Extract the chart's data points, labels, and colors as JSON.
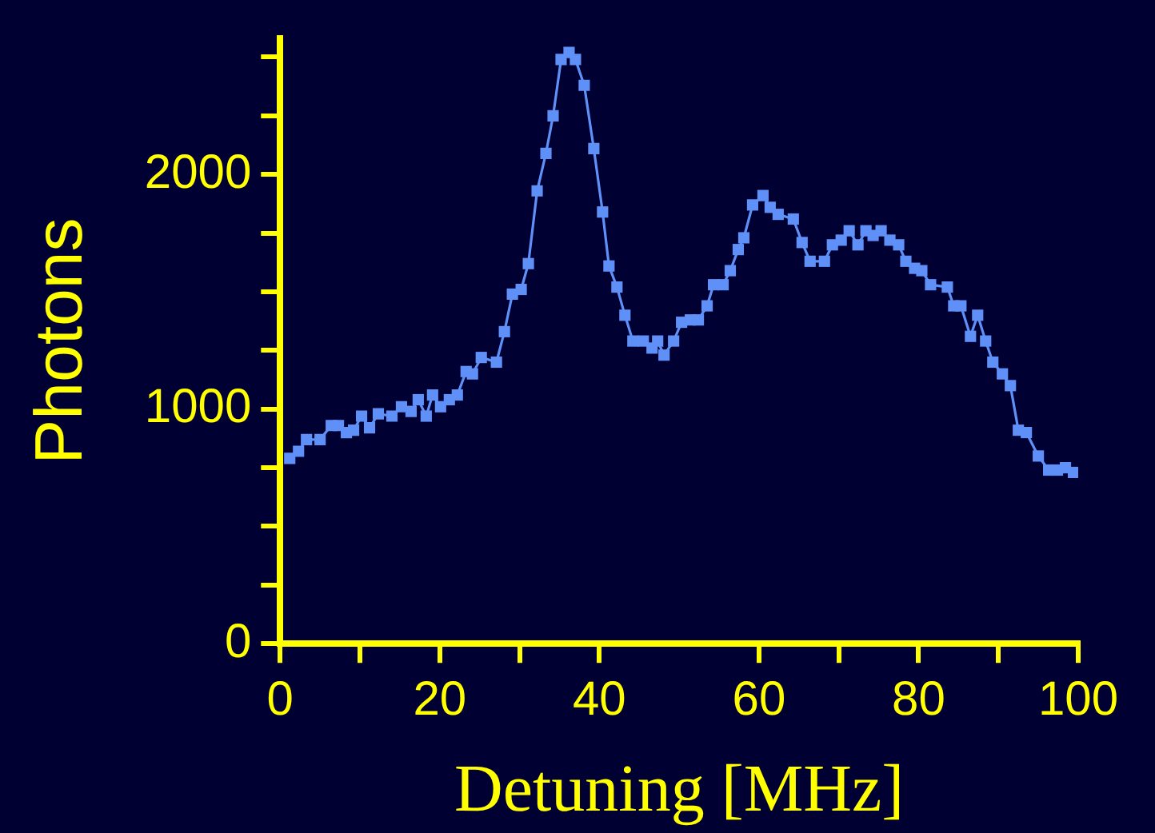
{
  "chart_data": {
    "type": "line",
    "xlabel": "Detuning [MHz]",
    "ylabel": "Photons",
    "x": [
      1.2,
      2.3,
      3.3,
      5,
      6.4,
      7.3,
      8.3,
      9.2,
      10.2,
      11.2,
      12.3,
      14,
      15.2,
      16.4,
      17.3,
      18.3,
      19.1,
      20.1,
      21.2,
      22.2,
      23.3,
      24.1,
      25.2,
      27.1,
      28.1,
      29.1,
      30.2,
      31.1,
      32.2,
      33.3,
      34.2,
      35.2,
      36.2,
      37,
      38.1,
      39.3,
      40.4,
      41.2,
      42.2,
      43.2,
      44.2,
      45.5,
      46.6,
      47.3,
      48.1,
      49.3,
      50.3,
      51.4,
      52.4,
      53.5,
      54.3,
      55.5,
      56.4,
      57.4,
      58.1,
      59.2,
      60.5,
      61.4,
      62.4,
      64.3,
      65.4,
      66.4,
      68.2,
      69.2,
      70.3,
      71.3,
      72.4,
      73.4,
      74.3,
      75.3,
      76.4,
      77.5,
      78.4,
      79.5,
      80.4,
      81.5,
      83.6,
      84.4,
      85.3,
      86.5,
      87.4,
      88.4,
      89.3,
      90.5,
      91.5,
      92.5,
      93.5,
      95,
      96.3,
      97.4,
      98.4,
      99.4
    ],
    "series": [
      {
        "color": "#5f90f8",
        "values": [
          790,
          820,
          870,
          870,
          930,
          930,
          900,
          910,
          970,
          920,
          980,
          970,
          1010,
          990,
          1040,
          970,
          1060,
          1010,
          1040,
          1060,
          1160,
          1150,
          1220,
          1200,
          1330,
          1490,
          1510,
          1620,
          1930,
          2090,
          2250,
          2490,
          2520,
          2490,
          2380,
          2110,
          1840,
          1610,
          1520,
          1400,
          1290,
          1290,
          1260,
          1290,
          1230,
          1290,
          1370,
          1380,
          1380,
          1440,
          1530,
          1530,
          1590,
          1680,
          1730,
          1870,
          1910,
          1860,
          1830,
          1810,
          1710,
          1630,
          1630,
          1700,
          1720,
          1760,
          1700,
          1760,
          1740,
          1760,
          1720,
          1700,
          1630,
          1600,
          1590,
          1530,
          1520,
          1440,
          1440,
          1310,
          1400,
          1290,
          1200,
          1150,
          1100,
          910,
          900,
          800,
          740,
          740,
          750,
          730
        ]
      }
    ],
    "xlim": [
      0,
      100
    ],
    "xticks": [
      0,
      {
        "value": 10,
        "label": null
      },
      20,
      {
        "value": 30,
        "label": null
      },
      40,
      60,
      {
        "value": 70,
        "label": null
      },
      80,
      {
        "value": 90,
        "label": null
      },
      100
    ],
    "ylim": [
      0,
      2580
    ],
    "yticks": [
      0,
      {
        "value": 250,
        "label": null
      },
      {
        "value": 500,
        "label": null
      },
      {
        "value": 750,
        "label": null
      },
      1000,
      {
        "value": 1250,
        "label": null
      },
      {
        "value": 1500,
        "label": null
      },
      {
        "value": 1750,
        "label": null
      },
      2000,
      {
        "value": 2250,
        "label": null
      },
      {
        "value": 2500,
        "label": null
      }
    ],
    "grid": false,
    "legend": false,
    "marker": "square",
    "line_style": "solid"
  }
}
